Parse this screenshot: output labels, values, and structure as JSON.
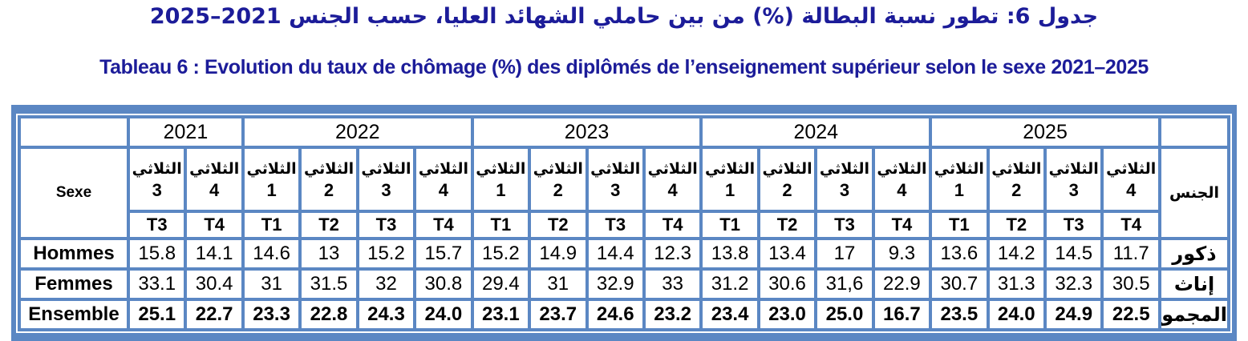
{
  "titles": {
    "arabic": "جدول 6: تطور نسبة البطالة (%) من بين حاملي الشهائد العليا، حسب الجنس 2021–2025",
    "french": "Tableau 6 : Evolution du taux de chômage (%) des diplômés de l’enseignement supérieur selon le sexe 2021–2025"
  },
  "colors": {
    "border_blue": "#5b87c3",
    "title_navy": "#1c1c99",
    "text_black": "#000000"
  },
  "table": {
    "header_left": "Sexe",
    "header_right": "الجنس",
    "years": [
      "2021",
      "2022",
      "2023",
      "2024",
      "2025"
    ],
    "quarter_word": "الثلاثي",
    "quarter_nums": [
      "3",
      "4",
      "1",
      "2",
      "3",
      "4",
      "1",
      "2",
      "3",
      "4",
      "1",
      "2",
      "3",
      "4",
      "1",
      "2",
      "3",
      "4"
    ],
    "t_codes": [
      "T3",
      "T4",
      "T1",
      "T2",
      "T3",
      "T4",
      "T1",
      "T2",
      "T3",
      "T4",
      "T1",
      "T2",
      "T3",
      "T4",
      "T1",
      "T2",
      "T3",
      "T4"
    ],
    "rows": [
      {
        "label_fr": "Hommes",
        "label_ar": "ذكور",
        "values": [
          "15.8",
          "14.1",
          "14.6",
          "13",
          "15.2",
          "15.7",
          "15.2",
          "14.9",
          "14.4",
          "12.3",
          "13.8",
          "13.4",
          "17",
          "9.3",
          "13.6",
          "14.2",
          "14.5",
          "11.7"
        ]
      },
      {
        "label_fr": "Femmes",
        "label_ar": "إناث",
        "values": [
          "33.1",
          "30.4",
          "31",
          "31.5",
          "32",
          "30.8",
          "29.4",
          "31",
          "32.9",
          "33",
          "31.2",
          "30.6",
          "31,6",
          "22.9",
          "30.7",
          "31.3",
          "32.3",
          "30.5"
        ]
      },
      {
        "label_fr": "Ensemble",
        "label_ar": "المجموع",
        "values": [
          "25.1",
          "22.7",
          "23.3",
          "22.8",
          "24.3",
          "24.0",
          "23.1",
          "23.7",
          "24.6",
          "23.2",
          "23.4",
          "23.0",
          "25.0",
          "16.7",
          "23.5",
          "24.0",
          "24.9",
          "22.5"
        ]
      }
    ]
  }
}
